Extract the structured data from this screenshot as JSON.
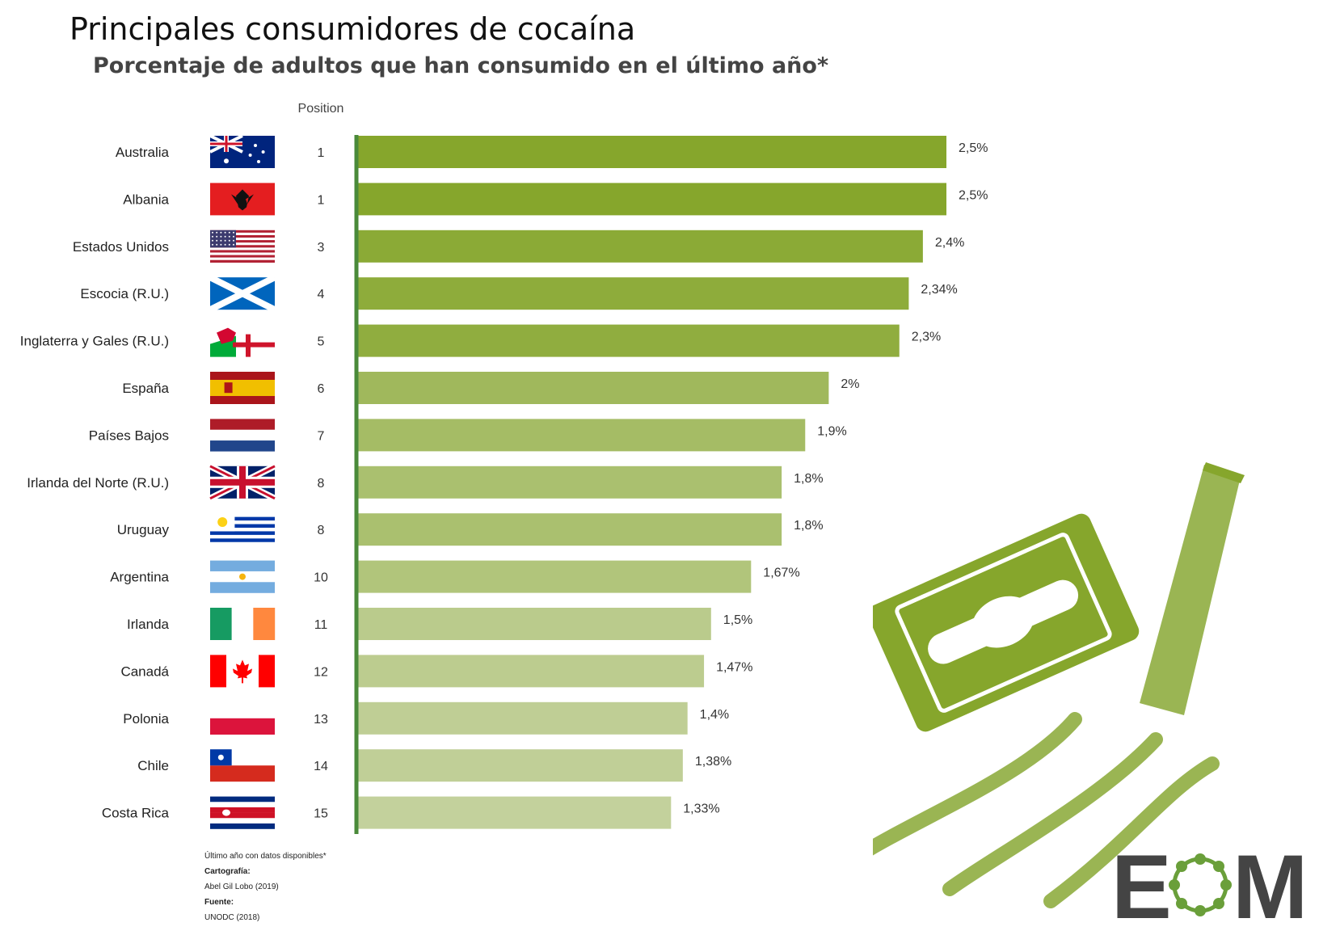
{
  "title": "Principales consumidores de cocaína",
  "subtitle": "Porcentaje de adultos que han consumido en el último año*",
  "position_header": "Position",
  "chart_data": {
    "type": "bar",
    "orientation": "horizontal",
    "title": "Principales consumidores de cocaína",
    "subtitle": "Porcentaje de adultos que han consumido en el último año*",
    "categories": [
      "Australia",
      "Albania",
      "Estados Unidos",
      "Escocia (R.U.)",
      "Inglaterra y Gales (R.U.)",
      "España",
      "Países Bajos",
      "Irlanda del Norte (R.U.)",
      "Uruguay",
      "Argentina",
      "Irlanda",
      "Canadá",
      "Polonia",
      "Chile",
      "Costa Rica"
    ],
    "positions": [
      "1",
      "1",
      "3",
      "4",
      "5",
      "6",
      "7",
      "8",
      "8",
      "10",
      "11",
      "12",
      "13",
      "14",
      "15"
    ],
    "values": [
      2.5,
      2.5,
      2.4,
      2.34,
      2.3,
      2.0,
      1.9,
      1.8,
      1.8,
      1.67,
      1.5,
      1.47,
      1.4,
      1.38,
      1.33
    ],
    "value_labels": [
      "2,5%",
      "2,5%",
      "2,4%",
      "2,34%",
      "2,3%",
      "2%",
      "1,9%",
      "1,8%",
      "1,8%",
      "1,67%",
      "1,5%",
      "1,47%",
      "1,4%",
      "1,38%",
      "1,33%"
    ],
    "flags": [
      "australia",
      "albania",
      "usa",
      "scotland",
      "england-wales",
      "spain",
      "netherlands",
      "uk",
      "uruguay",
      "argentina",
      "ireland",
      "canada",
      "poland",
      "chile",
      "costa-rica"
    ],
    "xlim": [
      0,
      2.5
    ],
    "grid": false,
    "colors": {
      "axis": "#4a8a3a",
      "bar_high": "#86a62c",
      "bar_low": "#c3d19c"
    }
  },
  "footnotes": {
    "note": "Último año con datos disponibles*",
    "cartografia_label": "Cartografía:",
    "cartografia_value": "Abel Gil Lobo (2019)",
    "fuente_label": "Fuente:",
    "fuente_value": "UNODC (2018)"
  },
  "logo": {
    "left": "E",
    "right": "M"
  }
}
